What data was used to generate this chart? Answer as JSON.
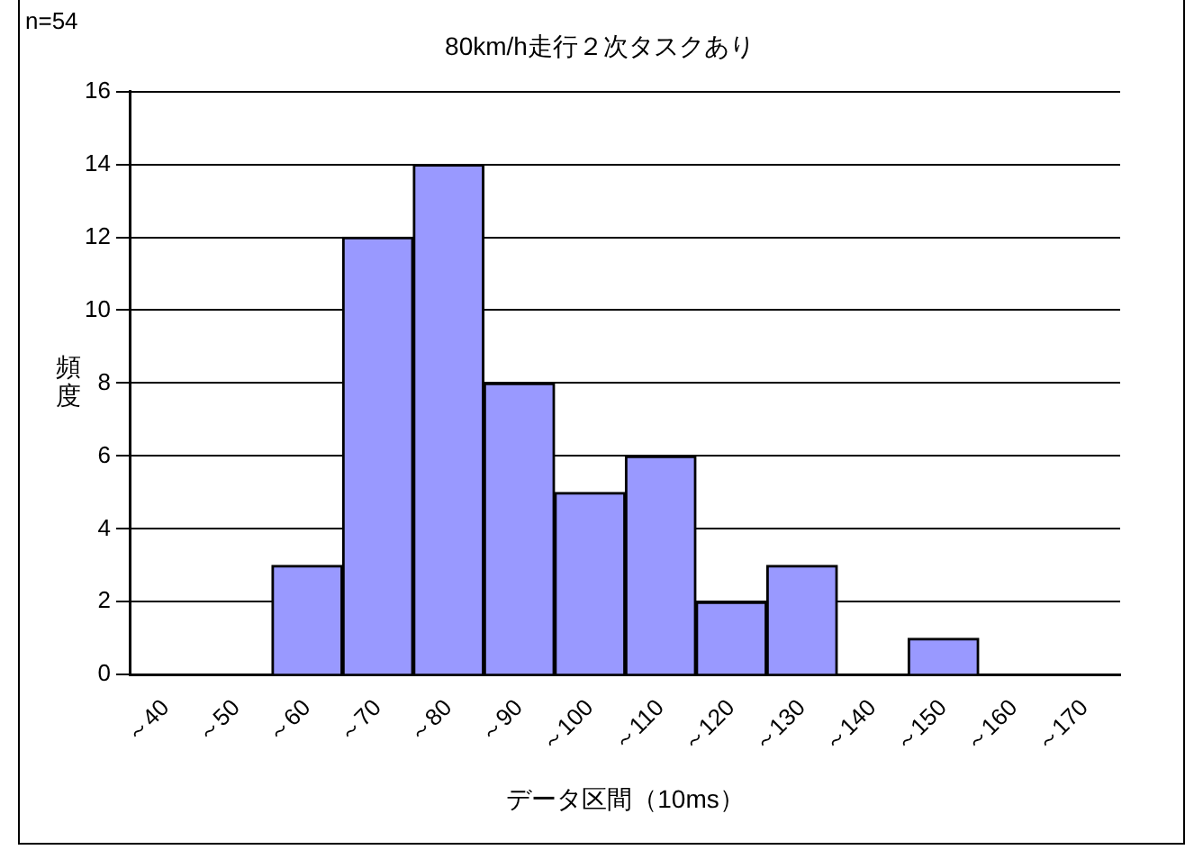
{
  "chart_data": {
    "type": "bar",
    "title": "80km/h走行２次タスクあり",
    "xlabel": "データ区間（10ms）",
    "ylabel": "頻度",
    "annotations": [
      "n=54"
    ],
    "categories": [
      "～40",
      "～50",
      "～60",
      "～70",
      "～80",
      "～90",
      "～100",
      "～110",
      "～120",
      "～130",
      "～140",
      "～150",
      "～160",
      "～170"
    ],
    "values": [
      0,
      0,
      3,
      12,
      14,
      8,
      5,
      6,
      2,
      3,
      0,
      1,
      0,
      0
    ],
    "color": "#9999ff",
    "ylim": [
      0,
      16
    ],
    "yticks": [
      0,
      2,
      4,
      6,
      8,
      10,
      12,
      14,
      16
    ],
    "grid": "y",
    "legend": false
  }
}
